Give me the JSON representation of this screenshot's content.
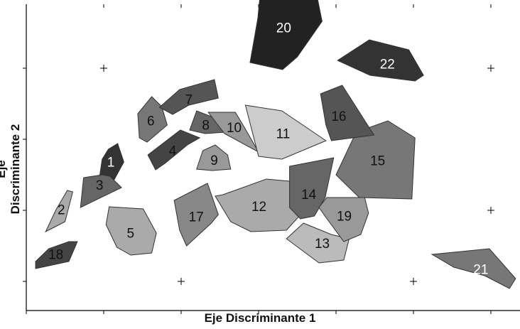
{
  "chart_data": {
    "type": "scatter",
    "xlabel": "Eje Discriminante 1",
    "ylabel": "Eje Discriminante 2",
    "xlim": [
      0,
      6.4
    ],
    "ylim": [
      0,
      4.0
    ],
    "markers": [
      {
        "x": 1,
        "y": 3
      },
      {
        "x": 6,
        "y": 3
      },
      {
        "x": 6,
        "y": 1
      },
      {
        "x": 2,
        "y": 0
      },
      {
        "x": 5,
        "y": 0
      }
    ],
    "regions": [
      {
        "label": "1",
        "fill": "#333333",
        "text": "#ffffff",
        "points": [
          [
            0.95,
            1.5
          ],
          [
            1.12,
            1.4
          ],
          [
            1.26,
            1.68
          ],
          [
            1.18,
            1.94
          ],
          [
            1.06,
            1.86
          ],
          [
            0.98,
            1.72
          ]
        ]
      },
      {
        "label": "2",
        "fill": "#aaaaaa",
        "text": "#111111",
        "points": [
          [
            0.25,
            0.7
          ],
          [
            0.5,
            0.84
          ],
          [
            0.6,
            1.26
          ],
          [
            0.53,
            1.28
          ],
          [
            0.38,
            1.0
          ]
        ]
      },
      {
        "label": "3",
        "fill": "#666666",
        "text": "#111111",
        "points": [
          [
            0.7,
            1.04
          ],
          [
            1.23,
            1.32
          ],
          [
            1.08,
            1.48
          ],
          [
            0.98,
            1.5
          ],
          [
            0.74,
            1.46
          ]
        ]
      },
      {
        "label": "4",
        "fill": "#444444",
        "text": "#111111",
        "points": [
          [
            1.67,
            1.57
          ],
          [
            1.57,
            1.78
          ],
          [
            1.99,
            2.13
          ],
          [
            2.24,
            2.02
          ],
          [
            2.08,
            1.92
          ],
          [
            1.79,
            1.66
          ]
        ]
      },
      {
        "label": "5",
        "fill": "#aaaaaa",
        "text": "#111111",
        "points": [
          [
            1.07,
            1.05
          ],
          [
            1.51,
            1.02
          ],
          [
            1.68,
            0.68
          ],
          [
            1.62,
            0.4
          ],
          [
            1.35,
            0.37
          ],
          [
            1.17,
            0.48
          ],
          [
            1.03,
            0.8
          ]
        ]
      },
      {
        "label": "6",
        "fill": "#777777",
        "text": "#111111",
        "points": [
          [
            1.62,
            2.6
          ],
          [
            1.75,
            2.46
          ],
          [
            1.82,
            2.2
          ],
          [
            1.56,
            1.96
          ],
          [
            1.46,
            2.02
          ],
          [
            1.44,
            2.36
          ]
        ]
      },
      {
        "label": "7",
        "fill": "#555555",
        "text": "#111111",
        "points": [
          [
            1.72,
            2.45
          ],
          [
            1.98,
            2.7
          ],
          [
            2.43,
            2.84
          ],
          [
            2.48,
            2.58
          ],
          [
            2.1,
            2.48
          ],
          [
            1.89,
            2.35
          ]
        ]
      },
      {
        "label": "8",
        "fill": "#666666",
        "text": "#111111",
        "points": [
          [
            2.11,
            2.13
          ],
          [
            2.2,
            2.4
          ],
          [
            2.39,
            2.32
          ],
          [
            2.58,
            2.1
          ],
          [
            2.31,
            2.08
          ]
        ]
      },
      {
        "label": "9",
        "fill": "#999999",
        "text": "#111111",
        "points": [
          [
            2.2,
            1.58
          ],
          [
            2.28,
            1.84
          ],
          [
            2.44,
            1.92
          ],
          [
            2.6,
            1.78
          ],
          [
            2.64,
            1.58
          ],
          [
            2.4,
            1.56
          ]
        ]
      },
      {
        "label": "10",
        "fill": "#999999",
        "text": "#111111",
        "points": [
          [
            2.35,
            2.38
          ],
          [
            2.7,
            2.38
          ],
          [
            2.81,
            2.18
          ],
          [
            3.0,
            1.82
          ],
          [
            2.56,
            2.08
          ]
        ]
      },
      {
        "label": "11",
        "fill": "#cccccc",
        "text": "#111111",
        "points": [
          [
            2.83,
            2.48
          ],
          [
            3.3,
            2.4
          ],
          [
            3.6,
            2.18
          ],
          [
            3.87,
            1.98
          ],
          [
            3.3,
            1.72
          ],
          [
            3.0,
            1.76
          ]
        ]
      },
      {
        "label": "12",
        "fill": "#aaaaaa",
        "text": "#111111",
        "points": [
          [
            2.54,
            1.22
          ],
          [
            3.1,
            1.44
          ],
          [
            3.5,
            1.4
          ],
          [
            3.56,
            0.96
          ],
          [
            3.36,
            0.72
          ],
          [
            2.9,
            0.7
          ],
          [
            2.64,
            0.84
          ],
          [
            2.44,
            1.2
          ]
        ]
      },
      {
        "label": "13",
        "fill": "#bbbbbb",
        "text": "#111111",
        "points": [
          [
            3.36,
            0.6
          ],
          [
            3.58,
            0.82
          ],
          [
            3.94,
            0.66
          ],
          [
            4.17,
            0.6
          ],
          [
            4.1,
            0.3
          ],
          [
            3.78,
            0.26
          ]
        ]
      },
      {
        "label": "14",
        "fill": "#666666",
        "text": "#111111",
        "points": [
          [
            3.4,
            1.62
          ],
          [
            3.97,
            1.74
          ],
          [
            3.86,
            1.18
          ],
          [
            3.72,
            0.92
          ],
          [
            3.54,
            0.88
          ],
          [
            3.4,
            1.04
          ]
        ]
      },
      {
        "label": "15",
        "fill": "#777777",
        "text": "#111111",
        "points": [
          [
            4.26,
            2.1
          ],
          [
            4.67,
            2.26
          ],
          [
            5.02,
            2.02
          ],
          [
            4.98,
            1.16
          ],
          [
            4.3,
            1.18
          ],
          [
            4.0,
            1.5
          ]
        ]
      },
      {
        "label": "16",
        "fill": "#555555",
        "text": "#111111",
        "points": [
          [
            3.8,
            2.64
          ],
          [
            4.08,
            2.76
          ],
          [
            4.49,
            2.06
          ],
          [
            3.94,
            1.98
          ],
          [
            3.87,
            2.2
          ]
        ]
      },
      {
        "label": "17",
        "fill": "#888888",
        "text": "#111111",
        "points": [
          [
            1.91,
            1.14
          ],
          [
            2.34,
            1.38
          ],
          [
            2.48,
            0.94
          ],
          [
            2.39,
            0.82
          ],
          [
            2.07,
            0.5
          ],
          [
            1.98,
            0.72
          ]
        ]
      },
      {
        "label": "18",
        "fill": "#444444",
        "text": "#111111",
        "points": [
          [
            0.12,
            0.18
          ],
          [
            0.55,
            0.28
          ],
          [
            0.66,
            0.56
          ],
          [
            0.55,
            0.56
          ],
          [
            0.29,
            0.46
          ],
          [
            0.12,
            0.28
          ]
        ]
      },
      {
        "label": "19",
        "fill": "#999999",
        "text": "#111111",
        "points": [
          [
            3.88,
            1.18
          ],
          [
            4.37,
            1.18
          ],
          [
            4.42,
            0.96
          ],
          [
            4.32,
            0.66
          ],
          [
            4.1,
            0.56
          ],
          [
            3.87,
            0.9
          ],
          [
            3.78,
            1.04
          ]
        ]
      },
      {
        "label": "20",
        "fill": "#222222",
        "text": "#ffffff",
        "points": [
          [
            2.99,
            3.7
          ],
          [
            3.04,
            4.26
          ],
          [
            3.72,
            4.2
          ],
          [
            3.82,
            3.66
          ],
          [
            3.5,
            3.16
          ],
          [
            3.31,
            2.98
          ],
          [
            2.89,
            3.08
          ]
        ]
      },
      {
        "label": "21",
        "fill": "#777777",
        "text": "#ffffff",
        "points": [
          [
            5.24,
            0.38
          ],
          [
            5.98,
            0.46
          ],
          [
            6.32,
            0.04
          ],
          [
            6.24,
            -0.1
          ],
          [
            5.92,
            0.08
          ],
          [
            5.52,
            0.2
          ]
        ]
      },
      {
        "label": "22",
        "fill": "#333333",
        "text": "#ffffff",
        "points": [
          [
            4.02,
            3.11
          ],
          [
            4.43,
            3.4
          ],
          [
            4.94,
            3.26
          ],
          [
            5.13,
            2.9
          ],
          [
            5.02,
            2.82
          ],
          [
            4.44,
            2.9
          ]
        ]
      }
    ]
  }
}
